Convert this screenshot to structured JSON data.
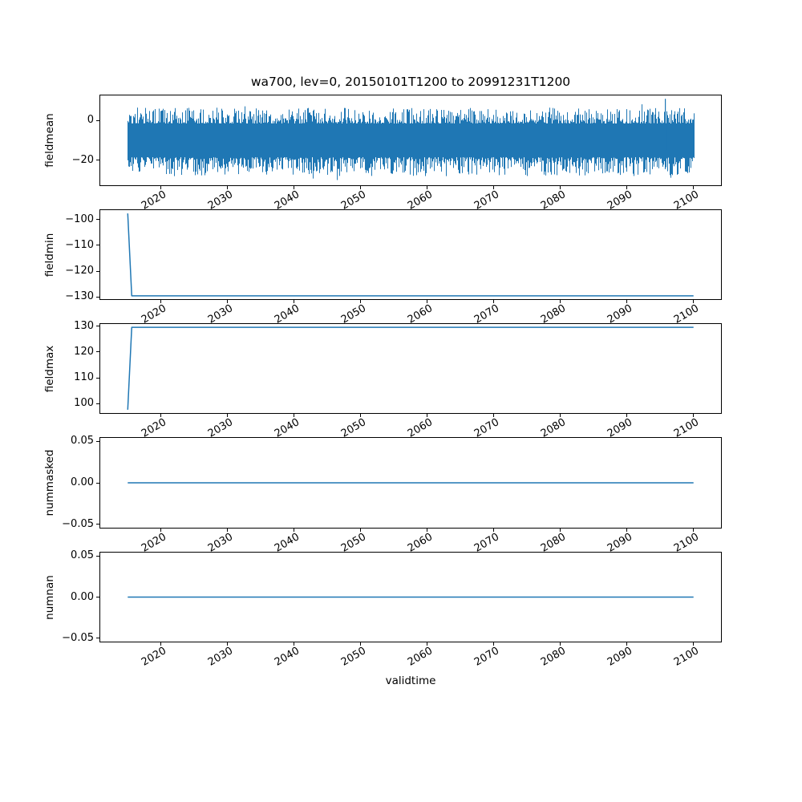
{
  "chart_data": {
    "type": "line",
    "title": "wa700, lev=0, 20150101T1200 to 20991231T1200",
    "xlabel": "validtime",
    "line_color": "#1f77b4",
    "grid": false,
    "legend": "none",
    "xlim": [
      2010.75,
      2104.25
    ],
    "x_range": [
      2015,
      2100
    ],
    "xticks": [
      2020,
      2030,
      2040,
      2050,
      2060,
      2070,
      2080,
      2090,
      2100
    ],
    "xtick_labels": [
      "2020",
      "2030",
      "2040",
      "2050",
      "2060",
      "2070",
      "2080",
      "2090",
      "2100"
    ],
    "xtick_rotation_deg": 30,
    "subplots": [
      {
        "ylabel": "fieldmean",
        "yticks": [
          0,
          -20
        ],
        "ytick_labels": [
          "0",
          "−20"
        ],
        "ylim": [
          -33,
          13
        ],
        "series_kind": "noise_band",
        "noise": {
          "description": "dense noisy daily time series, reads as a solid band",
          "x_start": 2015.0,
          "x_end": 2100.0,
          "mean_approx": -10.5,
          "core_band": [
            -18.5,
            1.0
          ],
          "typical_high_spikes": [
            0,
            7
          ],
          "typical_low_spikes": [
            -28,
            -20
          ],
          "extremes": [
            -30.9,
            10.9
          ],
          "max_spike": {
            "x": 2095.7,
            "y": 10.9
          },
          "seed": 20150101
        }
      },
      {
        "ylabel": "fieldmin",
        "yticks": [
          -100,
          -110,
          -120,
          -130
        ],
        "ytick_labels": [
          "−100",
          "−110",
          "−120",
          "−130"
        ],
        "ylim": [
          -131.2,
          -96.0
        ],
        "series_kind": "step",
        "points": [
          [
            2015.0,
            -97.6
          ],
          [
            2015.6,
            -129.6
          ],
          [
            2100.0,
            -129.6
          ]
        ]
      },
      {
        "ylabel": "fieldmax",
        "yticks": [
          130,
          120,
          110,
          100
        ],
        "ytick_labels": [
          "130",
          "120",
          "110",
          "100"
        ],
        "ylim": [
          96.0,
          131.2
        ],
        "series_kind": "step",
        "points": [
          [
            2015.0,
            97.6
          ],
          [
            2015.6,
            129.6
          ],
          [
            2100.0,
            129.6
          ]
        ]
      },
      {
        "ylabel": "nummasked",
        "yticks": [
          0.05,
          0,
          -0.05
        ],
        "ytick_labels": [
          "0.05",
          "0.00",
          "−0.05"
        ],
        "ylim": [
          -0.055,
          0.055
        ],
        "series_kind": "flat",
        "points": [
          [
            2015.0,
            0.0
          ],
          [
            2100.0,
            0.0
          ]
        ]
      },
      {
        "ylabel": "numnan",
        "yticks": [
          0.05,
          0,
          -0.05
        ],
        "ytick_labels": [
          "0.05",
          "0.00",
          "−0.05"
        ],
        "ylim": [
          -0.055,
          0.055
        ],
        "series_kind": "flat",
        "points": [
          [
            2015.0,
            0.0
          ],
          [
            2100.0,
            0.0
          ]
        ]
      }
    ]
  }
}
